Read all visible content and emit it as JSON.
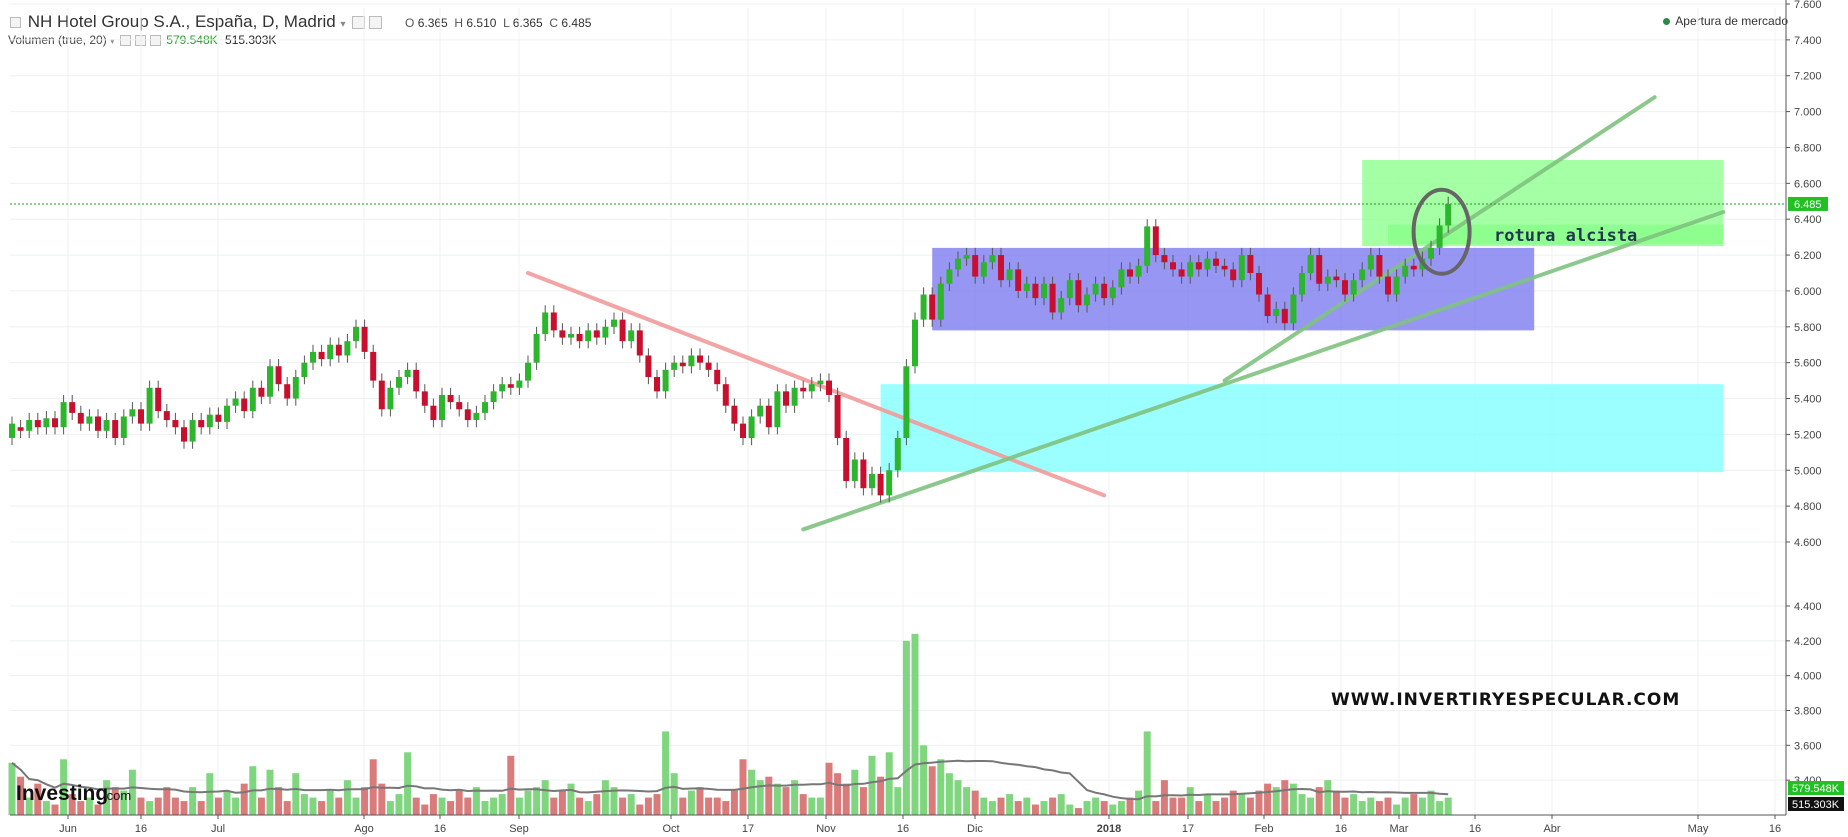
{
  "header": {
    "symbol_title": "NH Hotel Group S.A., España, D, Madrid",
    "ohlc": {
      "o_label": "O",
      "o": "6.365",
      "h_label": "H",
      "h": "6.510",
      "l_label": "L",
      "l": "6.365",
      "c_label": "C",
      "c": "6.485"
    },
    "volume_label": "Volumen (true, 20)",
    "volume_value": "579.548K",
    "volume_ma_value": "515.303K",
    "market_status": "Apertura de mercado"
  },
  "logo": {
    "text": "Investing",
    "suffix": ".com"
  },
  "watermark": "WWW.INVERTIRYESPECULAR.COM",
  "annotation": "rotura alcista",
  "colors": {
    "up": "#2db52d",
    "down": "#c8102e",
    "vol_up": "#7fd67f",
    "vol_down": "#d97b7b",
    "zone_blue": "#7b78f0",
    "zone_cyan": "#80ffff",
    "zone_green": "#8cff8c",
    "trend_red": "#f29a9a",
    "trend_green": "#7fc27f",
    "price_line": "#1aa01a"
  },
  "chart_data": {
    "type": "candlestick",
    "price_axis": {
      "ylim": [
        4.6,
        7.6
      ],
      "ticks": [
        "7.600",
        "7.400",
        "7.200",
        "7.000",
        "6.800",
        "6.600",
        "6.400",
        "6.200",
        "6.000",
        "5.800",
        "5.600",
        "5.400",
        "5.200",
        "5.000",
        "4.800",
        "4.600"
      ]
    },
    "volume_axis": {
      "ticks": [
        "4.400",
        "4.200",
        "4.000",
        "3.800",
        "3.600",
        "3.400"
      ]
    },
    "x_ticks": [
      "Jun",
      "16",
      "Jul",
      "Ago",
      "16",
      "Sep",
      "Oct",
      "17",
      "Nov",
      "16",
      "Dic",
      "2018",
      "17",
      "Feb",
      "16",
      "Mar",
      "16",
      "Abr",
      "May",
      "16"
    ],
    "last_price": "6.485",
    "volume_tags": [
      "579.548K",
      "515.303K"
    ],
    "candles": [
      [
        5.18,
        5.26
      ],
      [
        5.24,
        5.22
      ],
      [
        5.22,
        5.28
      ],
      [
        5.28,
        5.24
      ],
      [
        5.24,
        5.29
      ],
      [
        5.29,
        5.24
      ],
      [
        5.24,
        5.38
      ],
      [
        5.38,
        5.32
      ],
      [
        5.32,
        5.26
      ],
      [
        5.26,
        5.3
      ],
      [
        5.3,
        5.22
      ],
      [
        5.22,
        5.28
      ],
      [
        5.28,
        5.18
      ],
      [
        5.18,
        5.3
      ],
      [
        5.3,
        5.34
      ],
      [
        5.34,
        5.26
      ],
      [
        5.26,
        5.46
      ],
      [
        5.46,
        5.33
      ],
      [
        5.33,
        5.28
      ],
      [
        5.28,
        5.24
      ],
      [
        5.24,
        5.16
      ],
      [
        5.16,
        5.28
      ],
      [
        5.28,
        5.24
      ],
      [
        5.24,
        5.31
      ],
      [
        5.31,
        5.27
      ],
      [
        5.27,
        5.36
      ],
      [
        5.36,
        5.4
      ],
      [
        5.4,
        5.33
      ],
      [
        5.33,
        5.46
      ],
      [
        5.46,
        5.41
      ],
      [
        5.41,
        5.58
      ],
      [
        5.58,
        5.48
      ],
      [
        5.48,
        5.4
      ],
      [
        5.4,
        5.52
      ],
      [
        5.52,
        5.6
      ],
      [
        5.6,
        5.66
      ],
      [
        5.66,
        5.62
      ],
      [
        5.62,
        5.7
      ],
      [
        5.7,
        5.64
      ],
      [
        5.64,
        5.72
      ],
      [
        5.72,
        5.8
      ],
      [
        5.8,
        5.66
      ],
      [
        5.66,
        5.5
      ],
      [
        5.5,
        5.34
      ],
      [
        5.34,
        5.46
      ],
      [
        5.46,
        5.52
      ],
      [
        5.52,
        5.56
      ],
      [
        5.56,
        5.44
      ],
      [
        5.44,
        5.36
      ],
      [
        5.36,
        5.28
      ],
      [
        5.28,
        5.42
      ],
      [
        5.42,
        5.38
      ],
      [
        5.38,
        5.34
      ],
      [
        5.34,
        5.28
      ],
      [
        5.28,
        5.32
      ],
      [
        5.32,
        5.38
      ],
      [
        5.38,
        5.44
      ],
      [
        5.44,
        5.48
      ],
      [
        5.48,
        5.46
      ],
      [
        5.46,
        5.5
      ],
      [
        5.5,
        5.6
      ],
      [
        5.6,
        5.76
      ],
      [
        5.76,
        5.88
      ],
      [
        5.88,
        5.78
      ],
      [
        5.78,
        5.74
      ],
      [
        5.74,
        5.76
      ],
      [
        5.76,
        5.72
      ],
      [
        5.72,
        5.78
      ],
      [
        5.78,
        5.74
      ],
      [
        5.74,
        5.8
      ],
      [
        5.8,
        5.84
      ],
      [
        5.84,
        5.72
      ],
      [
        5.72,
        5.78
      ],
      [
        5.78,
        5.64
      ],
      [
        5.64,
        5.52
      ],
      [
        5.52,
        5.44
      ],
      [
        5.44,
        5.56
      ],
      [
        5.56,
        5.6
      ],
      [
        5.6,
        5.58
      ],
      [
        5.58,
        5.64
      ],
      [
        5.64,
        5.6
      ],
      [
        5.6,
        5.56
      ],
      [
        5.56,
        5.48
      ],
      [
        5.48,
        5.36
      ],
      [
        5.36,
        5.26
      ],
      [
        5.26,
        5.18
      ],
      [
        5.18,
        5.3
      ],
      [
        5.3,
        5.36
      ],
      [
        5.36,
        5.24
      ],
      [
        5.24,
        5.44
      ],
      [
        5.44,
        5.36
      ],
      [
        5.36,
        5.46
      ],
      [
        5.46,
        5.44
      ],
      [
        5.44,
        5.48
      ],
      [
        5.48,
        5.5
      ],
      [
        5.5,
        5.42
      ],
      [
        5.42,
        5.18
      ],
      [
        5.18,
        4.94
      ],
      [
        4.94,
        5.06
      ],
      [
        5.06,
        4.9
      ],
      [
        4.9,
        4.98
      ],
      [
        4.98,
        4.86
      ],
      [
        4.86,
        5
      ],
      [
        5,
        5.18
      ],
      [
        5.18,
        5.58
      ],
      [
        5.58,
        5.84
      ],
      [
        5.84,
        5.98
      ],
      [
        5.98,
        5.84
      ],
      [
        5.84,
        6.04
      ],
      [
        6.04,
        6.12
      ],
      [
        6.12,
        6.18
      ],
      [
        6.18,
        6.2
      ],
      [
        6.2,
        6.08
      ],
      [
        6.08,
        6.16
      ],
      [
        6.16,
        6.2
      ],
      [
        6.2,
        6.06
      ],
      [
        6.06,
        6.12
      ],
      [
        6.12,
        6
      ],
      [
        6,
        6.04
      ],
      [
        6.04,
        5.96
      ],
      [
        5.96,
        6.04
      ],
      [
        6.04,
        5.88
      ],
      [
        5.88,
        5.96
      ],
      [
        5.96,
        6.06
      ],
      [
        6.06,
        5.92
      ],
      [
        5.92,
        5.98
      ],
      [
        5.98,
        6.04
      ],
      [
        6.04,
        5.96
      ],
      [
        5.96,
        6.02
      ],
      [
        6.02,
        6.12
      ],
      [
        6.12,
        6.08
      ],
      [
        6.08,
        6.14
      ],
      [
        6.14,
        6.36
      ],
      [
        6.36,
        6.2
      ],
      [
        6.2,
        6.16
      ],
      [
        6.16,
        6.12
      ],
      [
        6.12,
        6.08
      ],
      [
        6.08,
        6.16
      ],
      [
        6.16,
        6.12
      ],
      [
        6.12,
        6.18
      ],
      [
        6.18,
        6.14
      ],
      [
        6.14,
        6.12
      ],
      [
        6.12,
        6.06
      ],
      [
        6.06,
        6.2
      ],
      [
        6.2,
        6.1
      ],
      [
        6.1,
        5.98
      ],
      [
        5.98,
        5.86
      ],
      [
        5.86,
        5.9
      ],
      [
        5.9,
        5.82
      ],
      [
        5.82,
        5.98
      ],
      [
        5.98,
        6.1
      ],
      [
        6.1,
        6.2
      ],
      [
        6.2,
        6.04
      ],
      [
        6.04,
        6.08
      ],
      [
        6.08,
        6.06
      ],
      [
        6.06,
        5.98
      ],
      [
        5.98,
        6.06
      ],
      [
        6.06,
        6.12
      ],
      [
        6.12,
        6.2
      ],
      [
        6.2,
        6.08
      ],
      [
        6.08,
        5.98
      ],
      [
        5.98,
        6.08
      ],
      [
        6.08,
        6.14
      ],
      [
        6.14,
        6.12
      ],
      [
        6.12,
        6.18
      ],
      [
        6.18,
        6.24
      ],
      [
        6.24,
        6.365
      ],
      [
        6.365,
        6.485
      ]
    ],
    "volume_ylim": [
      3.2,
      4.4
    ],
    "volumes": [
      3.5,
      3.42,
      3.3,
      3.38,
      3.28,
      3.26,
      3.52,
      3.32,
      3.28,
      3.3,
      3.26,
      3.4,
      3.36,
      3.34,
      3.46,
      3.3,
      3.28,
      3.3,
      3.36,
      3.3,
      3.28,
      3.36,
      3.28,
      3.44,
      3.3,
      3.34,
      3.3,
      3.38,
      3.48,
      3.3,
      3.46,
      3.36,
      3.28,
      3.44,
      3.32,
      3.3,
      3.28,
      3.34,
      3.3,
      3.4,
      3.3,
      3.36,
      3.52,
      3.38,
      3.28,
      3.32,
      3.56,
      3.3,
      3.26,
      3.32,
      3.3,
      3.28,
      3.34,
      3.3,
      3.36,
      3.28,
      3.3,
      3.32,
      3.54,
      3.3,
      3.34,
      3.36,
      3.4,
      3.3,
      3.34,
      3.38,
      3.3,
      3.28,
      3.32,
      3.4,
      3.36,
      3.3,
      3.32,
      3.26,
      3.3,
      3.32,
      3.68,
      3.44,
      3.3,
      3.34,
      3.36,
      3.3,
      3.3,
      3.28,
      3.34,
      3.52,
      3.46,
      3.4,
      3.42,
      3.38,
      3.36,
      3.4,
      3.32,
      3.3,
      3.3,
      3.5,
      3.44,
      3.38,
      3.46,
      3.36,
      3.54,
      3.42,
      3.56,
      3.36,
      4.2,
      4.24,
      3.6,
      3.48,
      3.52,
      3.44,
      3.4,
      3.36,
      3.34,
      3.3,
      3.28,
      3.3,
      3.32,
      3.28,
      3.3,
      3.26,
      3.28,
      3.3,
      3.32,
      3.26,
      3.24,
      3.28,
      3.3,
      3.28,
      3.26,
      3.28,
      3.3,
      3.34,
      3.68,
      3.28,
      3.4,
      3.3,
      3.3,
      3.36,
      3.28,
      3.32,
      3.28,
      3.3,
      3.34,
      3.32,
      3.3,
      3.34,
      3.38,
      3.36,
      3.4,
      3.38,
      3.32,
      3.3,
      3.36,
      3.4,
      3.34,
      3.3,
      3.32,
      3.28,
      3.3,
      3.28,
      3.3,
      3.26,
      3.3,
      3.32,
      3.3,
      3.34,
      3.28,
      3.3
    ],
    "zones": [
      {
        "color_key": "zone_blue",
        "x_from_index": 107,
        "x_to_index": 177,
        "ylim": [
          5.78,
          6.24
        ]
      },
      {
        "color_key": "zone_cyan",
        "x_from_index": 101,
        "x_to_index": 199,
        "ylim": [
          4.99,
          5.48
        ]
      },
      {
        "color_key": "zone_green",
        "x_from_index": 157,
        "x_to_index": 199,
        "ylim": [
          6.25,
          6.73
        ]
      },
      {
        "color_key": "zone_green",
        "x_from_index": 160,
        "x_to_index": 199,
        "ylim": [
          6.26,
          6.37
        ]
      }
    ],
    "trendlines": [
      {
        "color_key": "trend_red",
        "from": [
          60,
          6.1
        ],
        "to": [
          127,
          4.86
        ]
      },
      {
        "color_key": "trend_green",
        "from": [
          92,
          4.67
        ],
        "to": [
          199,
          6.44
        ]
      },
      {
        "color_key": "trend_green",
        "from": [
          141,
          5.5
        ],
        "to": [
          191,
          7.08
        ]
      }
    ]
  }
}
